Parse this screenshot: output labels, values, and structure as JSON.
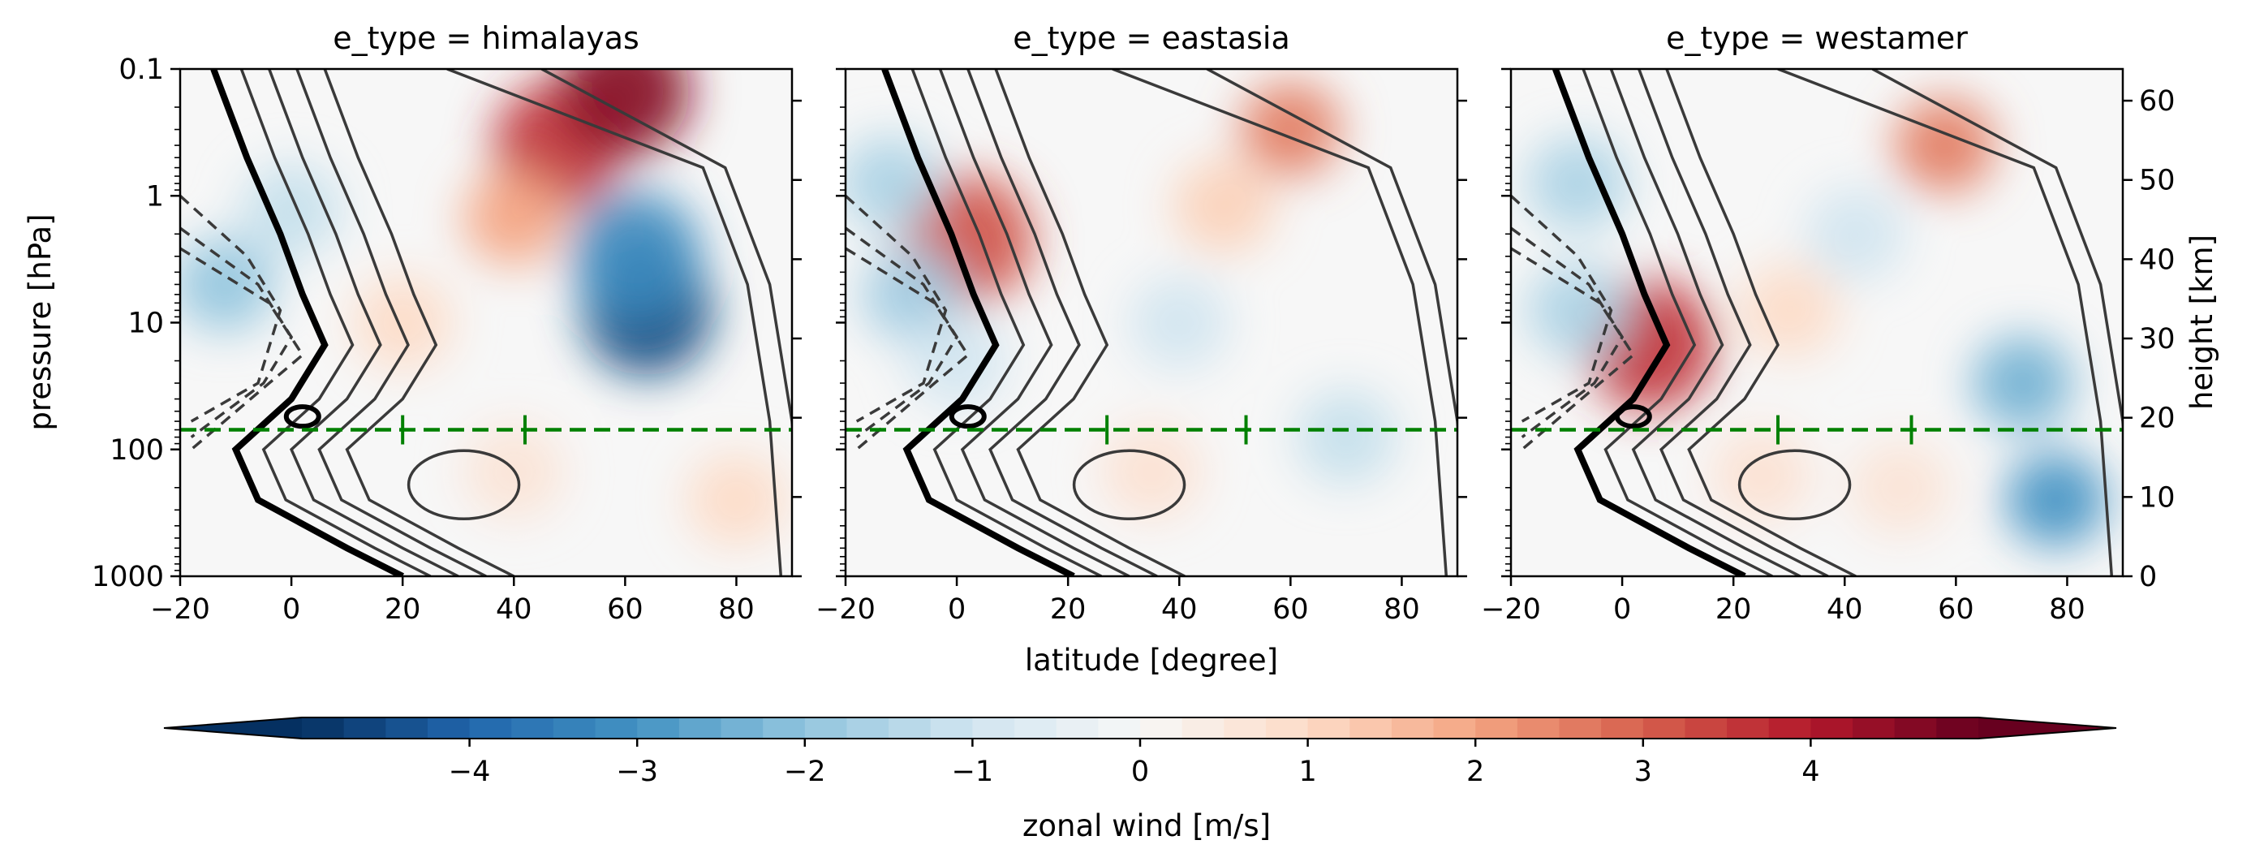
{
  "chart_data": {
    "type": "heatmap",
    "shared": {
      "xlabel": "latitude [degree]",
      "ylabel_left": "pressure [hPa]",
      "ylabel_right": "height [km]",
      "x_range": [
        -20,
        90
      ],
      "x_ticks": [
        -20,
        0,
        20,
        40,
        60,
        80
      ],
      "x_tick_labels": [
        "−20",
        "0",
        "20",
        "40",
        "60",
        "80"
      ],
      "y_scale": "log",
      "y_range_hpa": [
        1000,
        0.1
      ],
      "y_ticks_hpa": [
        0.1,
        1,
        10,
        100,
        1000
      ],
      "y_tick_labels": [
        "0.1",
        "1",
        "10",
        "100",
        "1000"
      ],
      "y2_range_km": [
        0,
        64
      ],
      "y2_ticks_km": [
        0,
        10,
        20,
        30,
        40,
        50,
        60
      ],
      "y2_tick_labels": [
        "0",
        "10",
        "20",
        "30",
        "40",
        "50",
        "60"
      ],
      "reference_line_hpa": 70,
      "reference_line_color": "#008000",
      "contour_color": "#3a3a3a",
      "zero_contour_color": "#000000"
    },
    "panels": [
      {
        "title": "e_type = himalayas",
        "marker_lats": [
          20,
          42
        ],
        "anomalies": [
          {
            "lat": 48,
            "p": 0.4,
            "value": 3.6
          },
          {
            "lat": 60,
            "p": 0.15,
            "value": 4.6
          },
          {
            "lat": 40,
            "p": 1.5,
            "value": 2.0
          },
          {
            "lat": 64,
            "p": 8,
            "value": -4.6
          },
          {
            "lat": 62,
            "p": 3,
            "value": -3.2
          },
          {
            "lat": -12,
            "p": 5,
            "value": -2.0
          },
          {
            "lat": 0,
            "p": 1.3,
            "value": -1.2
          },
          {
            "lat": 20,
            "p": 10,
            "value": 1.0
          },
          {
            "lat": 40,
            "p": 150,
            "value": 0.7
          },
          {
            "lat": 80,
            "p": 250,
            "value": 1.0
          }
        ]
      },
      {
        "title": "e_type = eastasia",
        "marker_lats": [
          27,
          52
        ],
        "anomalies": [
          {
            "lat": 2,
            "p": 2.2,
            "value": 3.2
          },
          {
            "lat": -12,
            "p": 0.8,
            "value": -1.6
          },
          {
            "lat": -8,
            "p": 6,
            "value": -1.8
          },
          {
            "lat": 60,
            "p": 0.3,
            "value": 2.6
          },
          {
            "lat": 48,
            "p": 1.2,
            "value": 1.2
          },
          {
            "lat": 40,
            "p": 10,
            "value": -1.0
          },
          {
            "lat": 70,
            "p": 80,
            "value": -1.2
          },
          {
            "lat": 0,
            "p": 20,
            "value": -1.0
          },
          {
            "lat": 35,
            "p": 150,
            "value": 0.8
          }
        ]
      },
      {
        "title": "e_type = westamer",
        "marker_lats": [
          28,
          52
        ],
        "anomalies": [
          {
            "lat": 5,
            "p": 15,
            "value": 3.6
          },
          {
            "lat": 58,
            "p": 0.4,
            "value": 2.6
          },
          {
            "lat": -8,
            "p": 0.8,
            "value": -1.6
          },
          {
            "lat": -8,
            "p": 8,
            "value": -1.6
          },
          {
            "lat": 72,
            "p": 30,
            "value": -2.4
          },
          {
            "lat": 78,
            "p": 250,
            "value": -3.0
          },
          {
            "lat": 42,
            "p": 2,
            "value": -1.0
          },
          {
            "lat": 30,
            "p": 8,
            "value": 1.0
          },
          {
            "lat": 25,
            "p": 160,
            "value": 0.8
          },
          {
            "lat": 50,
            "p": 200,
            "value": 0.7
          }
        ]
      }
    ],
    "colorbar": {
      "label": "zonal wind [m/s]",
      "range": [
        -5,
        5
      ],
      "levels": 40,
      "ticks": [
        -4,
        -3,
        -2,
        -1,
        0,
        1,
        2,
        3,
        4
      ],
      "tick_labels": [
        "−4",
        "−3",
        "−2",
        "−1",
        "0",
        "1",
        "2",
        "3",
        "4"
      ],
      "extend": "both",
      "colormap": "RdBu_r"
    }
  }
}
